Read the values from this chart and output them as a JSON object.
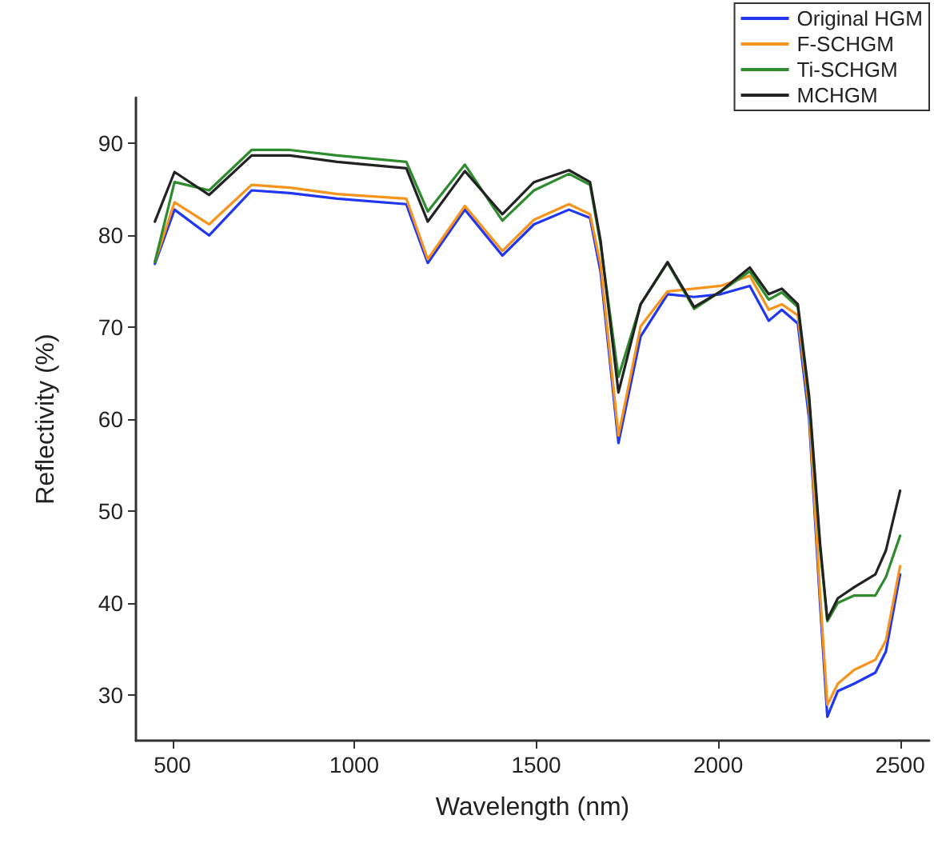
{
  "chart_data": {
    "type": "line",
    "xlabel": "Wavelength (nm)",
    "ylabel": "Reflectivity (%)",
    "xlim": [
      400,
      2580
    ],
    "xticks": [
      500,
      1000,
      1500,
      2000,
      2500
    ],
    "ylim": [
      25,
      95
    ],
    "yticks": [
      30,
      40,
      50,
      60,
      70,
      80,
      90
    ],
    "grid": false,
    "legend": "top right",
    "marker": "none",
    "line_style": "solid",
    "x": [
      452,
      506,
      601,
      718,
      823,
      953,
      1143,
      1202,
      1304,
      1407,
      1494,
      1590,
      1648,
      1677,
      1726,
      1787,
      1861,
      1934,
      2007,
      2087,
      2139,
      2175,
      2219,
      2250,
      2280,
      2300,
      2329,
      2374,
      2432,
      2461,
      2500
    ],
    "series": [
      {
        "name": "Original HGM",
        "color": "#2136f0",
        "values": [
          76.9,
          82.8,
          80.0,
          84.9,
          84.6,
          84.0,
          83.4,
          77.0,
          82.8,
          77.8,
          81.2,
          82.8,
          81.9,
          76.0,
          57.4,
          69.0,
          73.6,
          73.3,
          73.6,
          74.5,
          70.7,
          71.9,
          70.4,
          60.0,
          40.0,
          27.6,
          30.4,
          31.2,
          32.4,
          34.7,
          43.1
        ]
      },
      {
        "name": "F-SCHGM",
        "color": "#f7941d",
        "values": [
          77.1,
          83.6,
          81.2,
          85.5,
          85.2,
          84.5,
          84.0,
          77.4,
          83.2,
          78.3,
          81.7,
          83.4,
          82.3,
          76.8,
          58.2,
          70.1,
          73.9,
          74.2,
          74.5,
          75.6,
          71.9,
          72.5,
          71.3,
          61.0,
          41.0,
          28.9,
          31.2,
          32.7,
          33.8,
          35.9,
          44.0
        ]
      },
      {
        "name": "Ti-SCHGM",
        "color": "#2e8b2e",
        "values": [
          77.1,
          85.8,
          84.9,
          89.3,
          89.3,
          88.7,
          88.0,
          82.6,
          87.7,
          81.6,
          84.9,
          86.7,
          85.5,
          79.0,
          64.6,
          72.5,
          77.0,
          72.0,
          73.9,
          76.1,
          73.0,
          73.8,
          72.2,
          62.0,
          46.0,
          38.0,
          40.0,
          40.8,
          40.8,
          42.8,
          47.3
        ]
      },
      {
        "name": "MCHGM",
        "color": "#222222",
        "values": [
          81.5,
          86.9,
          84.4,
          88.7,
          88.7,
          88.0,
          87.3,
          81.5,
          87.0,
          82.3,
          85.8,
          87.1,
          85.8,
          79.4,
          62.9,
          72.5,
          77.1,
          72.2,
          73.9,
          76.5,
          73.6,
          74.2,
          72.5,
          62.5,
          46.5,
          38.2,
          40.5,
          41.7,
          43.1,
          45.7,
          52.2
        ]
      }
    ]
  }
}
